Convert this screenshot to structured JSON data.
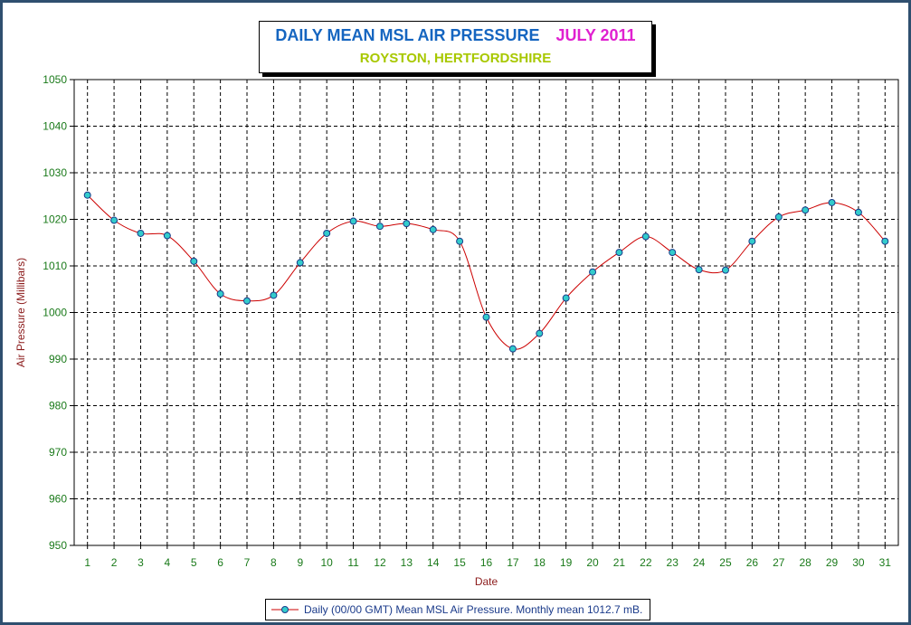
{
  "title": {
    "main": "DAILY MEAN MSL AIR PRESSURE",
    "month": "JULY 2011",
    "subtitle": "ROYSTON, HERTFORDSHIRE"
  },
  "colors": {
    "title_main": "#1565c0",
    "title_month": "#e020d0",
    "subtitle": "#a8c800",
    "tick_labels": "#1a7a1a",
    "axis_title": "#8b1a1a",
    "line": "#cc0000",
    "marker_fill": "#33cccc",
    "marker_stroke": "#1a3a8a",
    "grid": "#000000",
    "border": "#2f4f6f"
  },
  "chart_data": {
    "type": "line",
    "xlabel": "Date",
    "ylabel": "Air Pressure (Millibars)",
    "ylim": [
      950,
      1050
    ],
    "yticks": [
      950,
      960,
      970,
      980,
      990,
      1000,
      1010,
      1020,
      1030,
      1040,
      1050
    ],
    "grid": true,
    "grid_style": "dashed",
    "smoothed": true,
    "legend_position": "bottom-center",
    "x": [
      1,
      2,
      3,
      4,
      5,
      6,
      7,
      8,
      9,
      10,
      11,
      12,
      13,
      14,
      15,
      16,
      17,
      18,
      19,
      20,
      21,
      22,
      23,
      24,
      25,
      26,
      27,
      28,
      29,
      30,
      31
    ],
    "series": [
      {
        "name": "Daily (00/00 GMT) Mean MSL Air Pressure. Monthly mean 1012.7 mB.",
        "values": [
          1025.2,
          1019.8,
          1017.0,
          1016.5,
          1011.0,
          1004.0,
          1002.5,
          1003.7,
          1010.7,
          1017.0,
          1019.6,
          1018.5,
          1019.1,
          1017.8,
          1015.3,
          999.0,
          992.2,
          995.5,
          1003.1,
          1008.7,
          1012.9,
          1016.3,
          1012.9,
          1009.2,
          1009.1,
          1015.3,
          1020.5,
          1022.0,
          1023.6,
          1021.5,
          1015.3
        ]
      }
    ]
  }
}
